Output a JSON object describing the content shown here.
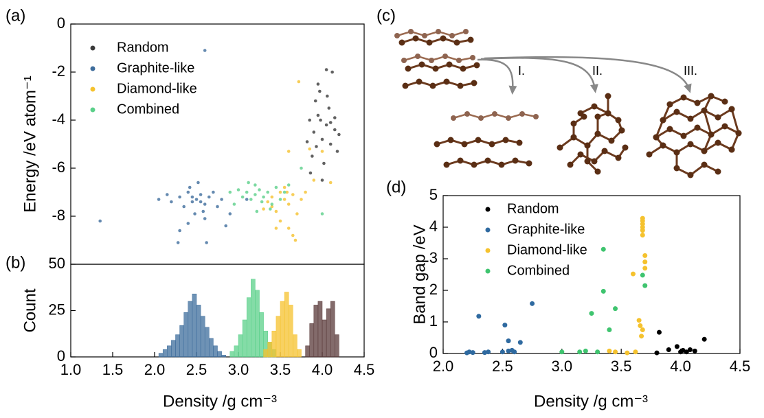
{
  "chart_data": [
    {
      "type": "scatter",
      "panel_label": "(a)",
      "y_label": "Energy /eV atom⁻¹",
      "xlim": [
        1.0,
        4.5
      ],
      "ylim": [
        -10,
        0
      ],
      "yticks": [
        -8,
        -6,
        -4,
        -2,
        0
      ],
      "legend": "upper-left",
      "series": [
        {
          "name": "Random",
          "color": "#3a3a3a",
          "x": [
            3.85,
            3.9,
            3.95,
            4.0,
            4.05,
            4.1,
            4.15,
            3.88,
            3.92,
            4.02,
            4.08,
            4.18,
            3.98,
            4.12,
            4.05,
            3.95,
            3.86,
            4.0,
            4.2,
            3.82,
            4.1,
            3.93,
            4.06,
            3.97,
            4.15
          ],
          "values": [
            -4.0,
            -4.5,
            -3.8,
            -4.8,
            -4.2,
            -5.0,
            -4.4,
            -5.5,
            -3.2,
            -5.8,
            -3.5,
            -5.3,
            -4.0,
            -2.0,
            -1.9,
            -2.5,
            -6.2,
            -6.5,
            -4.6,
            -4.9,
            -4.1,
            -5.1,
            -3.0,
            -2.8,
            -3.9
          ]
        },
        {
          "name": "Graphite-like",
          "color": "#3e6d9c",
          "x": [
            2.3,
            2.4,
            2.45,
            2.5,
            2.55,
            2.6,
            2.35,
            2.42,
            2.58,
            2.65,
            2.2,
            2.15,
            2.7,
            2.75,
            2.48,
            2.52,
            2.4,
            2.6,
            2.3,
            2.8,
            2.9,
            2.05,
            2.28,
            2.62,
            2.45,
            2.55,
            1.35,
            2.6,
            3.1,
            2.85
          ],
          "values": [
            -7.2,
            -7.0,
            -7.4,
            -7.3,
            -7.1,
            -7.5,
            -7.6,
            -6.8,
            -7.8,
            -7.2,
            -7.4,
            -7.1,
            -7.0,
            -7.6,
            -7.9,
            -6.6,
            -8.3,
            -8.1,
            -8.6,
            -7.3,
            -7.9,
            -7.3,
            -9.1,
            -9.1,
            -7.2,
            -7.4,
            -8.2,
            -1.1,
            -7.3,
            -8.4
          ]
        },
        {
          "name": "Diamond-like",
          "color": "#f5c22e",
          "x": [
            3.4,
            3.5,
            3.55,
            3.6,
            3.45,
            3.65,
            3.5,
            3.6,
            3.4,
            3.7,
            3.55,
            3.35,
            3.75,
            3.65,
            3.68,
            3.8,
            3.9,
            3.85,
            3.72,
            3.6,
            4.1,
            4.0,
            3.45,
            3.3,
            3.58
          ],
          "values": [
            -7.2,
            -7.0,
            -7.3,
            -7.5,
            -7.8,
            -7.1,
            -8.2,
            -8.5,
            -7.6,
            -7.9,
            -6.8,
            -7.4,
            -7.3,
            -8.8,
            -9.0,
            -7.0,
            -6.5,
            -5.2,
            -2.4,
            -5.3,
            -6.6,
            -5.3,
            -8.5,
            -7.7,
            -7.0
          ]
        },
        {
          "name": "Combined",
          "color": "#5bd08a",
          "x": [
            3.1,
            3.2,
            3.25,
            3.15,
            3.3,
            3.35,
            3.05,
            3.0,
            3.4,
            3.2,
            3.28,
            3.12,
            2.95,
            2.9,
            3.45,
            3.38,
            3.22,
            3.5,
            3.6,
            3.75,
            4.0,
            3.55
          ],
          "values": [
            -7.0,
            -7.1,
            -6.9,
            -7.3,
            -7.2,
            -7.0,
            -7.2,
            -6.9,
            -7.5,
            -6.7,
            -7.4,
            -6.6,
            -7.5,
            -7.0,
            -6.8,
            -7.7,
            -7.8,
            -7.3,
            -6.7,
            -6.0,
            -7.9,
            -7.0
          ]
        }
      ]
    },
    {
      "type": "histogram",
      "panel_label": "(b)",
      "y_label": "Count",
      "x_label": "Density /g cm⁻³",
      "xlim": [
        1.0,
        4.5
      ],
      "ylim": [
        0,
        50
      ],
      "yticks": [
        0,
        25,
        50
      ],
      "xticks": [
        {
          "value": 1.0,
          "label": "1.0"
        },
        {
          "value": 1.5,
          "label": "1.5"
        },
        {
          "value": 2.0,
          "label": "2.0"
        },
        {
          "value": 2.5,
          "label": "2.5"
        },
        {
          "value": 3.0,
          "label": "3.0"
        },
        {
          "value": 3.5,
          "label": "3.5"
        },
        {
          "value": 4.0,
          "label": "4.0"
        },
        {
          "value": 4.5,
          "label": "4.5"
        }
      ],
      "series": [
        {
          "name": "Graphite-like",
          "color": "#3e6d9c",
          "bins": [
            2.05,
            2.1,
            2.15,
            2.2,
            2.25,
            2.3,
            2.35,
            2.4,
            2.45,
            2.5,
            2.55,
            2.6,
            2.65,
            2.7,
            2.75,
            2.8,
            2.85
          ],
          "counts": [
            2,
            4,
            6,
            9,
            12,
            17,
            24,
            30,
            34,
            28,
            22,
            16,
            10,
            6,
            3,
            1
          ]
        },
        {
          "name": "Combined",
          "color": "#5bd08a",
          "bins": [
            2.9,
            2.95,
            3.0,
            3.05,
            3.1,
            3.15,
            3.2,
            3.25,
            3.3,
            3.35,
            3.4,
            3.45
          ],
          "counts": [
            3,
            6,
            12,
            20,
            32,
            42,
            36,
            24,
            14,
            8,
            4
          ]
        },
        {
          "name": "Diamond-like",
          "color": "#f5c22e",
          "bins": [
            3.3,
            3.35,
            3.4,
            3.45,
            3.5,
            3.55,
            3.6,
            3.65,
            3.7,
            3.75
          ],
          "counts": [
            4,
            8,
            14,
            22,
            30,
            35,
            28,
            12,
            4
          ]
        },
        {
          "name": "Random",
          "color": "#5a3a3a",
          "bins": [
            3.8,
            3.85,
            3.9,
            3.95,
            4.0,
            4.05,
            4.1,
            4.15,
            4.2
          ],
          "counts": [
            6,
            18,
            28,
            30,
            20,
            26,
            30,
            12
          ]
        }
      ]
    },
    {
      "type": "scatter",
      "panel_label": "(d)",
      "y_label": "Band gap /eV",
      "x_label": "Density /g cm⁻³",
      "xlim": [
        2.0,
        4.5
      ],
      "ylim": [
        0,
        5
      ],
      "yticks": [
        0,
        1,
        2,
        3,
        4,
        5
      ],
      "legend": "upper-left",
      "xticks": [
        {
          "value": 2.0,
          "label": "2.0"
        },
        {
          "value": 2.5,
          "label": "2.5"
        },
        {
          "value": 3.0,
          "label": "3.0"
        },
        {
          "value": 3.5,
          "label": "3.5"
        },
        {
          "value": 4.0,
          "label": "4.0"
        },
        {
          "value": 4.5,
          "label": "4.5"
        }
      ],
      "series": [
        {
          "name": "Random",
          "color": "#000000",
          "x": [
            3.82,
            3.8,
            3.9,
            3.97,
            4.02,
            4.05,
            4.08,
            4.12,
            4.2,
            4.0
          ],
          "values": [
            0.67,
            0.02,
            0.12,
            0.22,
            0.1,
            0.05,
            0.12,
            0.08,
            0.45,
            0.05
          ]
        },
        {
          "name": "Graphite-like",
          "color": "#2f6aa0",
          "x": [
            2.2,
            2.22,
            2.25,
            2.3,
            2.35,
            2.38,
            2.5,
            2.52,
            2.55,
            2.55,
            2.6,
            2.65,
            2.75,
            2.58
          ],
          "values": [
            0.02,
            0.05,
            0.03,
            1.18,
            0.03,
            0.05,
            0.05,
            0.9,
            0.4,
            0.08,
            0.05,
            0.35,
            1.58,
            0.1
          ]
        },
        {
          "name": "Diamond-like",
          "color": "#f5c22e",
          "x": [
            3.4,
            3.45,
            3.55,
            3.6,
            3.62,
            3.65,
            3.66,
            3.67,
            3.68,
            3.68,
            3.68,
            3.68,
            3.68,
            3.68,
            3.68,
            3.7,
            3.7,
            3.7
          ],
          "values": [
            0.08,
            0.05,
            0.02,
            2.52,
            0.05,
            1.05,
            0.88,
            0.55,
            0.75,
            3.75,
            3.9,
            4.0,
            4.1,
            4.2,
            4.28,
            2.9,
            3.1,
            2.7
          ]
        },
        {
          "name": "Combined",
          "color": "#3fc46f",
          "x": [
            3.0,
            3.15,
            3.2,
            3.25,
            3.3,
            3.35,
            3.35,
            3.4,
            3.45,
            3.68,
            3.7
          ],
          "values": [
            0.05,
            0.05,
            0.08,
            1.27,
            0.05,
            1.97,
            3.3,
            0.75,
            1.42,
            2.48,
            2.15
          ]
        }
      ]
    }
  ],
  "diagram": {
    "panel_label": "(c)",
    "paths": [
      "I.",
      "II.",
      "III."
    ]
  }
}
